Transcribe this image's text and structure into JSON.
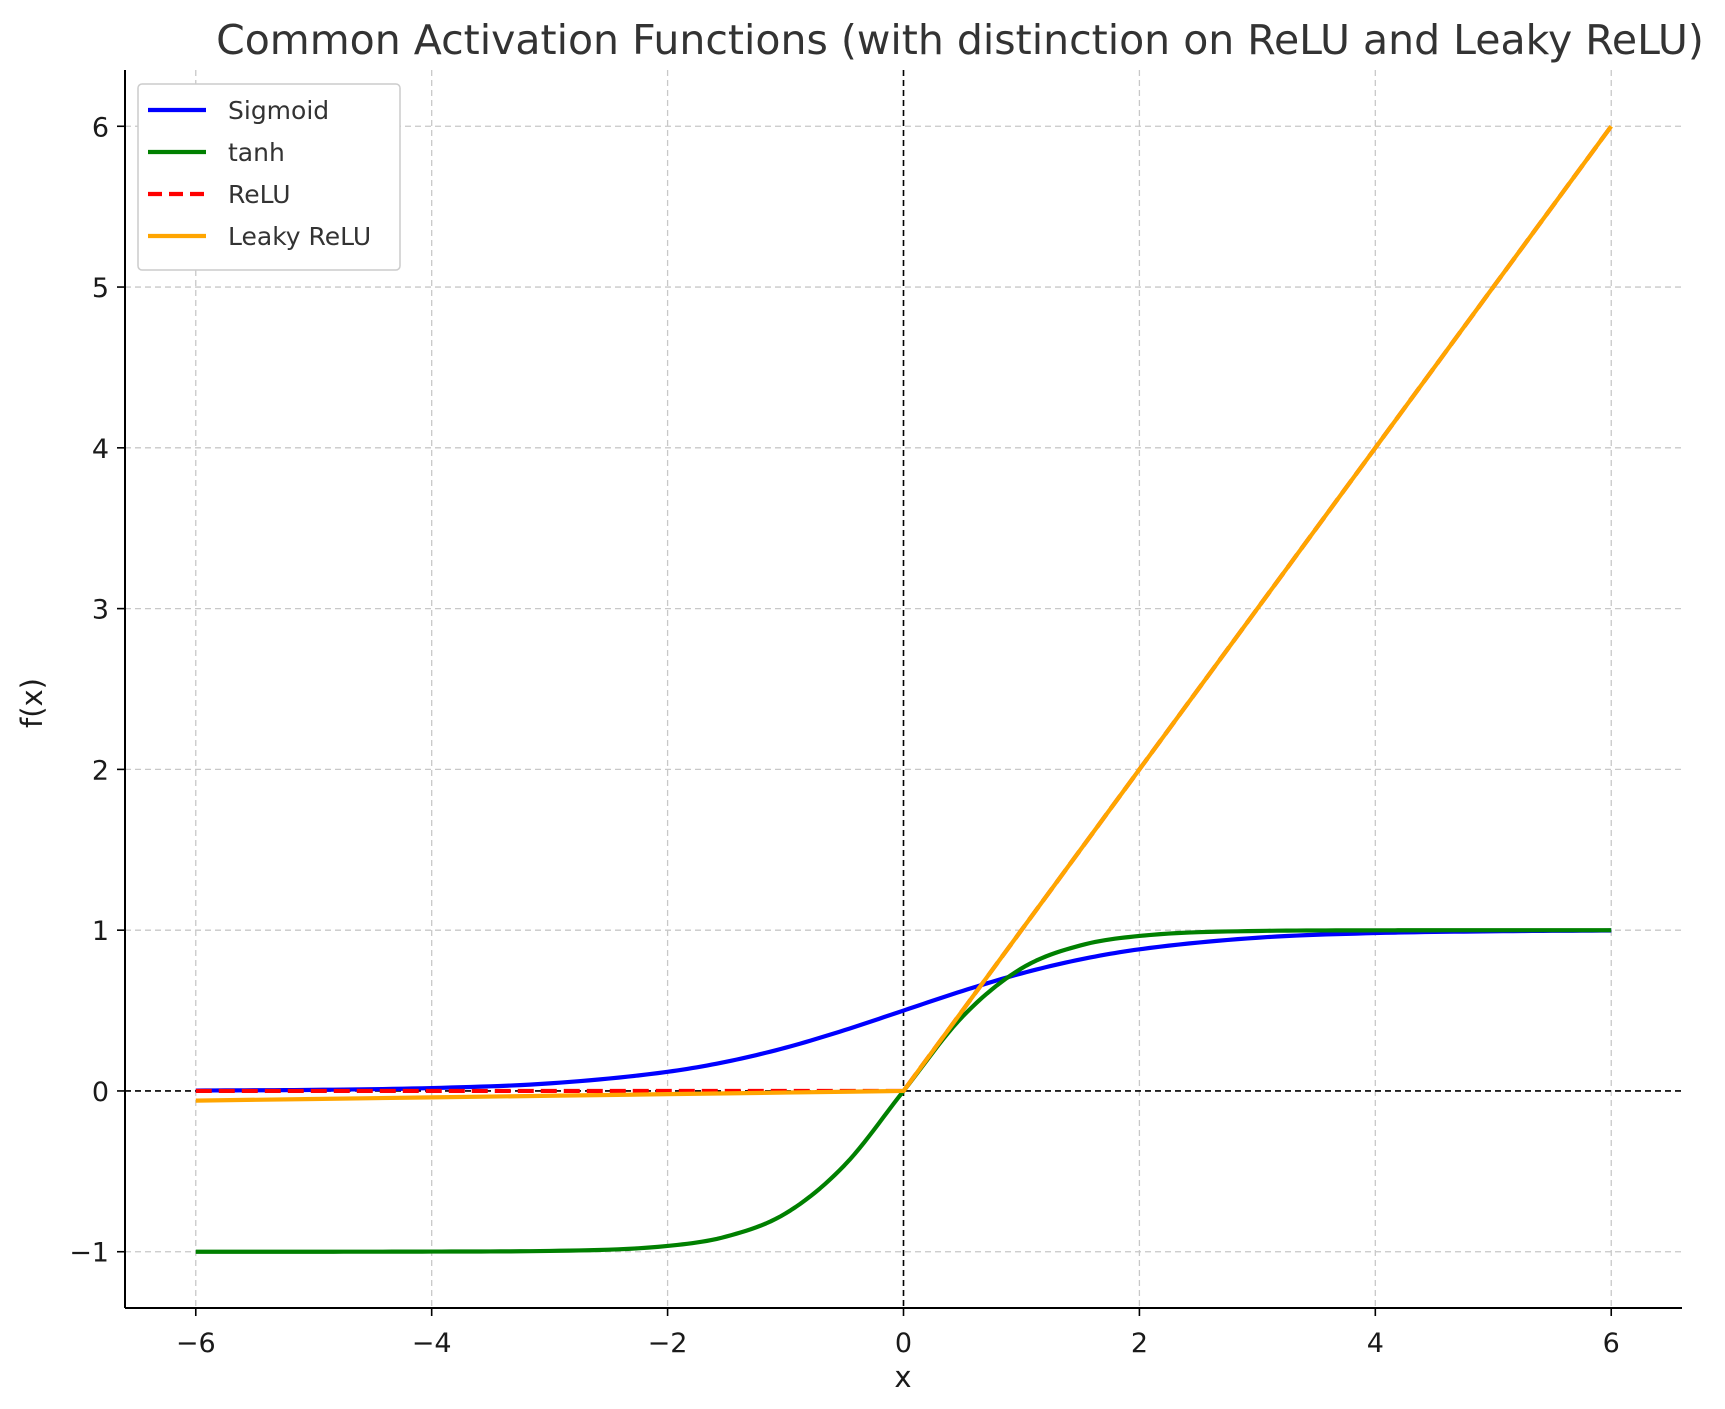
{
  "chart_data": {
    "type": "line",
    "title": "Common Activation Functions (with distinction on ReLU and Leaky ReLU)",
    "xlabel": "x",
    "ylabel": "f(x)",
    "xlim": [
      -6.6,
      6.6
    ],
    "ylim": [
      -1.35,
      6.35
    ],
    "x_ticks": [
      -6,
      -4,
      -2,
      0,
      2,
      4,
      6
    ],
    "x_tick_labels": [
      "−6",
      "−4",
      "−2",
      "0",
      "2",
      "4",
      "6"
    ],
    "y_ticks": [
      -1,
      0,
      1,
      2,
      3,
      4,
      5,
      6
    ],
    "y_tick_labels": [
      "−1",
      "0",
      "1",
      "2",
      "3",
      "4",
      "5",
      "6"
    ],
    "grid": true,
    "legend_position": "top-left",
    "reference_lines": {
      "x0_dashed": true,
      "y0_dashed": true
    },
    "x": [
      -6,
      -5,
      -4,
      -3,
      -2,
      -1.5,
      -1,
      -0.5,
      0,
      0.5,
      1,
      1.5,
      2,
      3,
      4,
      5,
      6
    ],
    "series": [
      {
        "name": "Sigmoid",
        "color": "#0000ff",
        "style": "solid",
        "values": [
          0.0025,
          0.0067,
          0.018,
          0.047,
          0.119,
          0.182,
          0.269,
          0.378,
          0.5,
          0.622,
          0.731,
          0.818,
          0.881,
          0.953,
          0.982,
          0.993,
          0.998
        ]
      },
      {
        "name": "tanh",
        "color": "#008000",
        "style": "solid",
        "values": [
          -1.0,
          -1.0,
          -0.999,
          -0.995,
          -0.964,
          -0.905,
          -0.762,
          -0.462,
          0.0,
          0.462,
          0.762,
          0.905,
          0.964,
          0.995,
          0.999,
          1.0,
          1.0
        ]
      },
      {
        "name": "ReLU",
        "color": "#ff0000",
        "style": "dashed",
        "values": [
          0,
          0,
          0,
          0,
          0,
          0,
          0,
          0,
          0,
          0.5,
          1,
          1.5,
          2,
          3,
          4,
          5,
          6
        ]
      },
      {
        "name": "Leaky ReLU",
        "color": "#ffa500",
        "style": "solid",
        "values": [
          -0.06,
          -0.05,
          -0.04,
          -0.03,
          -0.02,
          -0.015,
          -0.01,
          -0.005,
          0,
          0.5,
          1,
          1.5,
          2,
          3,
          4,
          5,
          6
        ]
      }
    ]
  }
}
